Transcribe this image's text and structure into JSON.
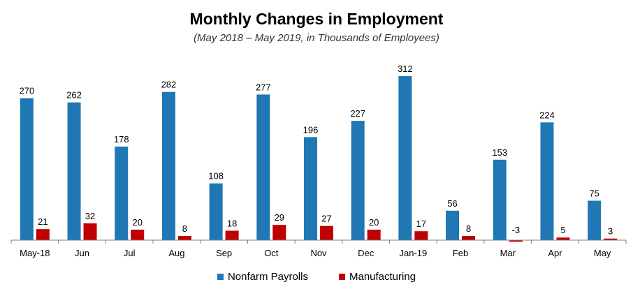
{
  "chart_data": {
    "type": "bar",
    "title": "Monthly Changes in Employment",
    "subtitle": "(May 2018 – May 2019, in Thousands of Employees)",
    "categories": [
      "May-18",
      "Jun",
      "Jul",
      "Aug",
      "Sep",
      "Oct",
      "Nov",
      "Dec",
      "Jan-19",
      "Feb",
      "Mar",
      "Apr",
      "May"
    ],
    "series": [
      {
        "name": "Nonfarm Payrolls",
        "color": "#1f77b4",
        "values": [
          270,
          262,
          178,
          282,
          108,
          277,
          196,
          227,
          312,
          56,
          153,
          224,
          75
        ]
      },
      {
        "name": "Manufacturing",
        "color": "#c00000",
        "values": [
          21,
          32,
          20,
          8,
          18,
          29,
          27,
          20,
          17,
          8,
          -3,
          5,
          3
        ]
      }
    ],
    "data_labels": true,
    "grid": false,
    "legend_position": "bottom",
    "ylim": [
      -3,
      320
    ]
  }
}
